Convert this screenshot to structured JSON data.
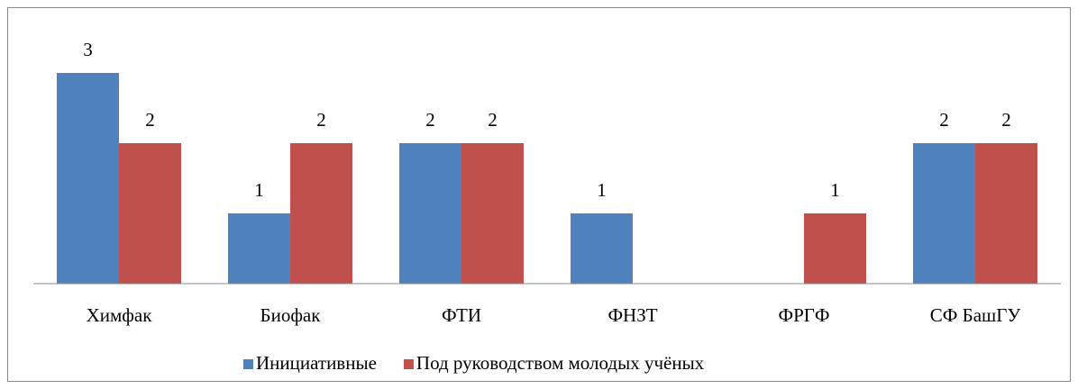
{
  "chart_data": {
    "type": "bar",
    "categories": [
      "Химфак",
      "Биофак",
      "ФТИ",
      "ФНЗТ",
      "ФРГФ",
      "СФ БашГУ"
    ],
    "series": [
      {
        "name": "Инициативные",
        "color": "#4f81bd",
        "values": [
          3,
          1,
          2,
          1,
          null,
          2
        ]
      },
      {
        "name": "Под руководством молодых учёных",
        "color": "#c0504d",
        "values": [
          2,
          2,
          2,
          null,
          1,
          2
        ]
      }
    ],
    "ylim": [
      0,
      3.5
    ],
    "legend": "bottom"
  }
}
